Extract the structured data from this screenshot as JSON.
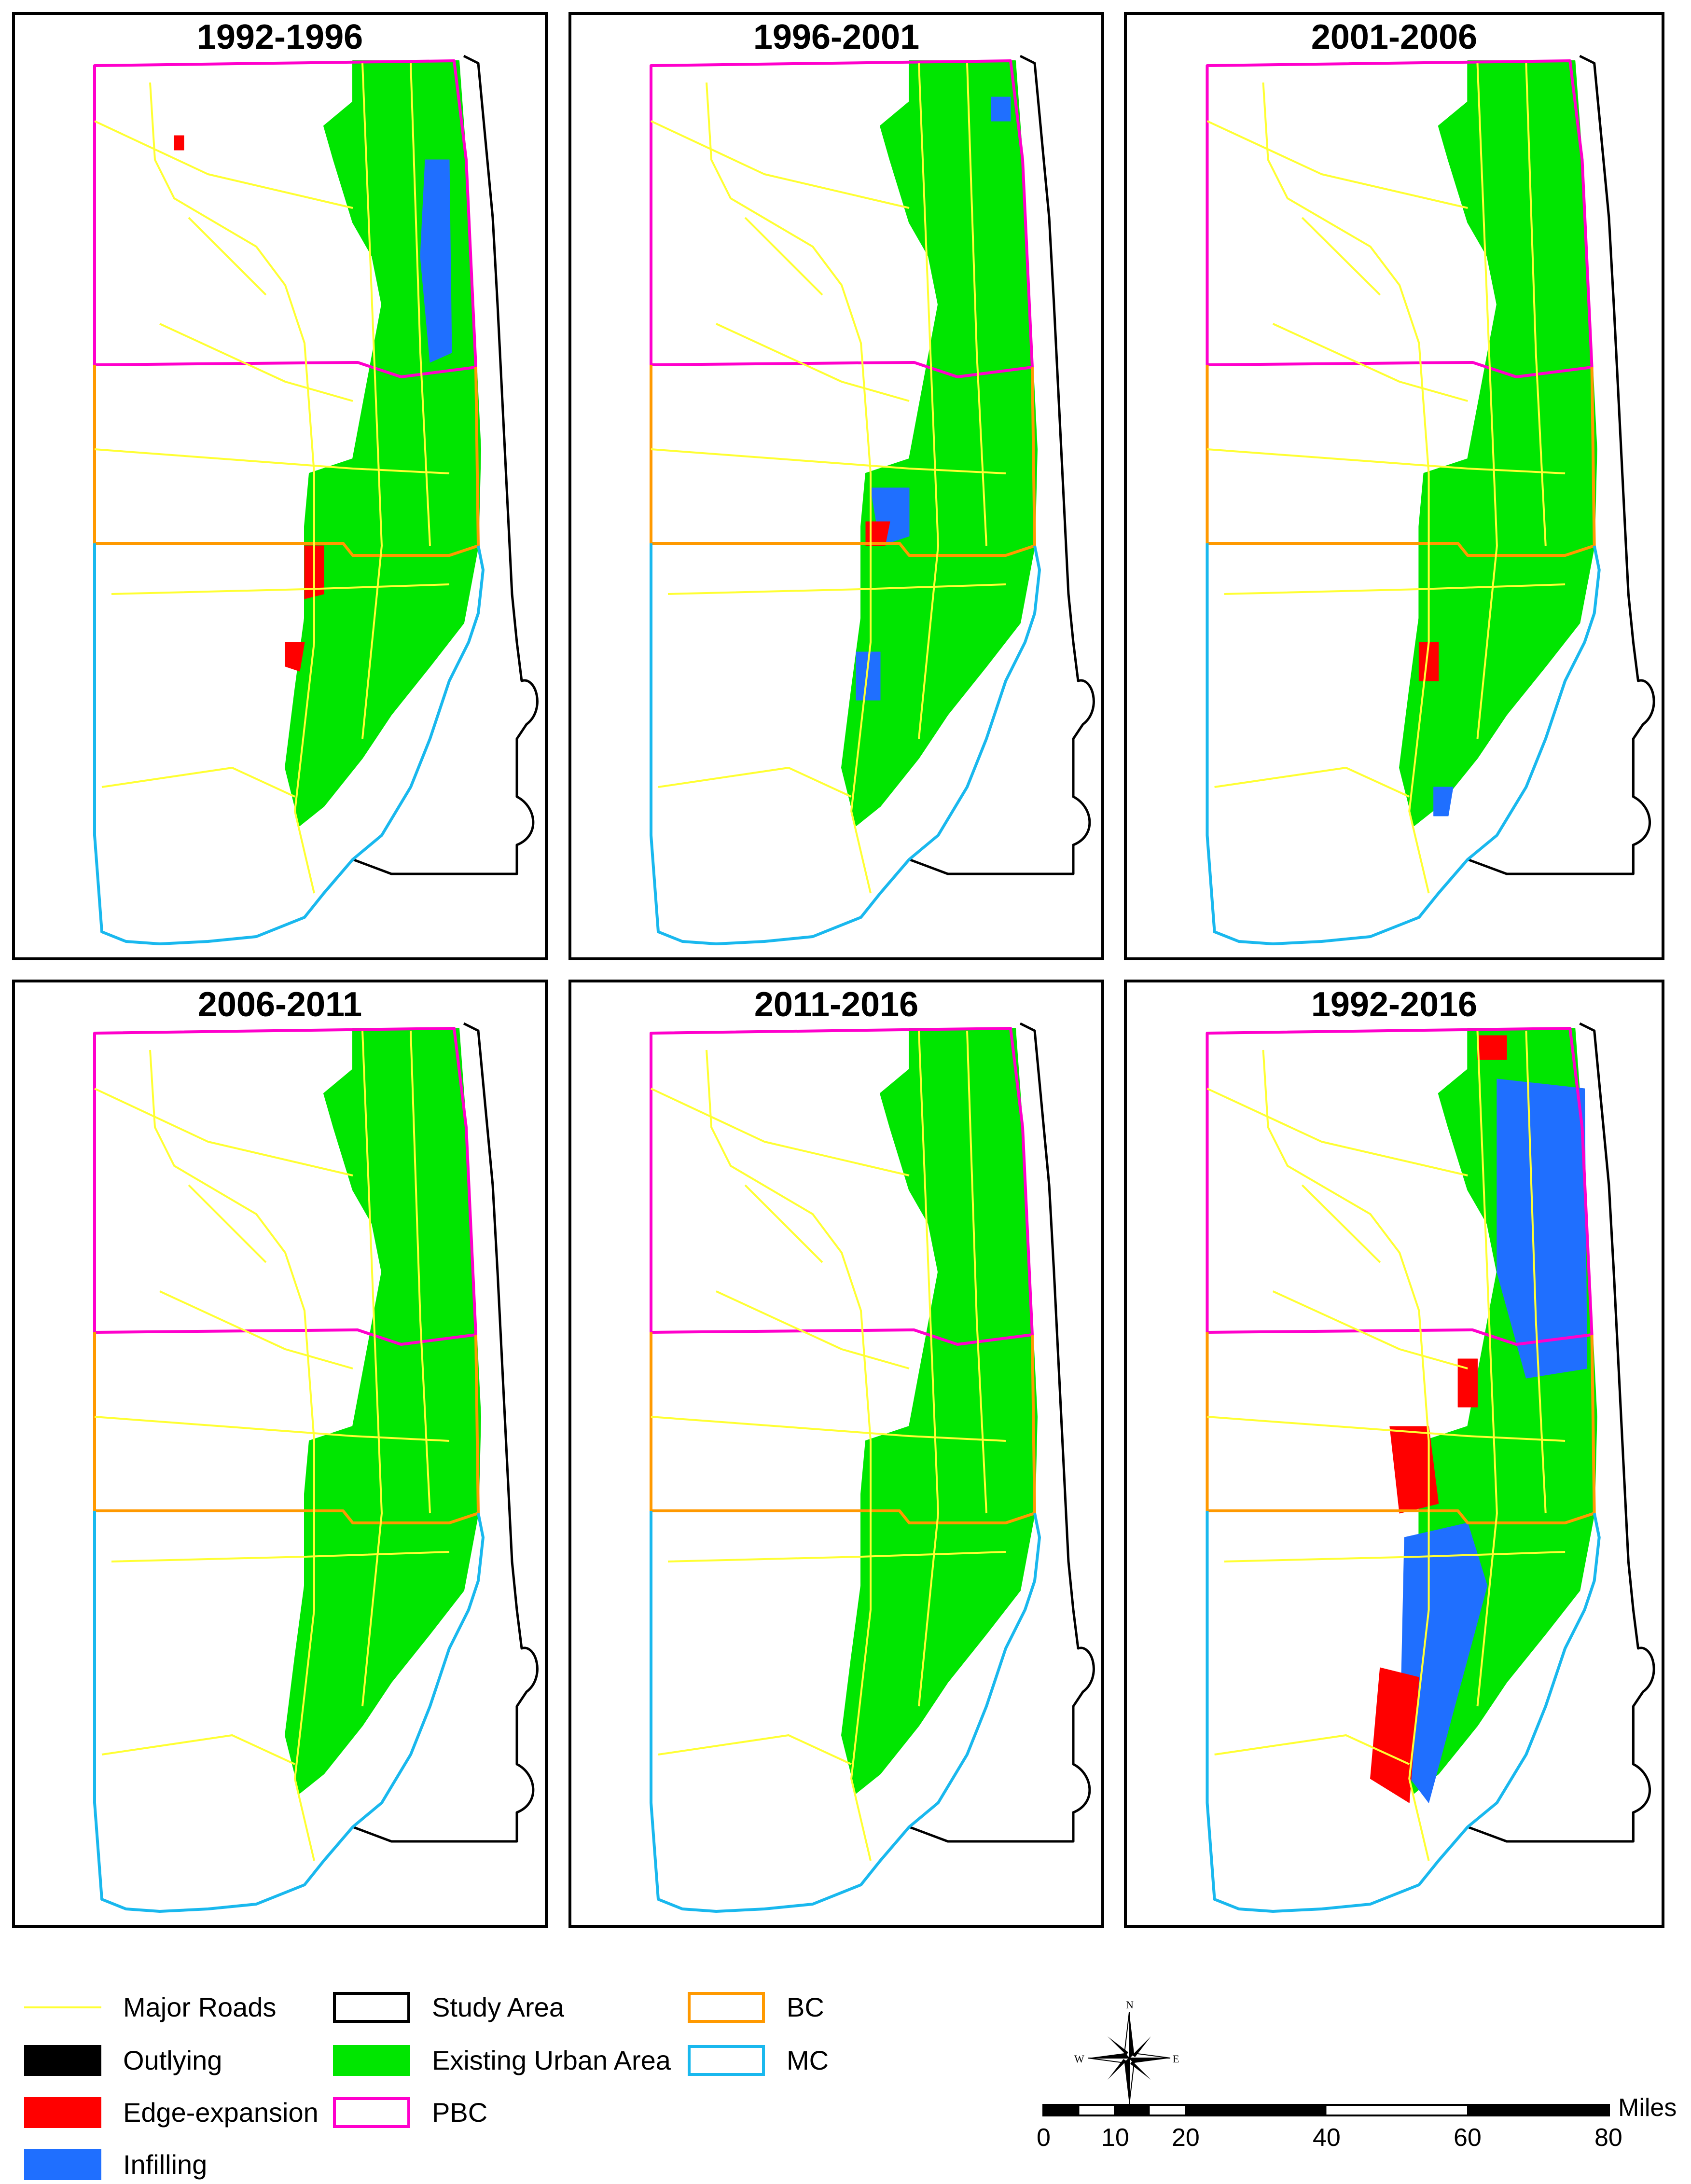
{
  "panels": [
    {
      "title": "1992-1996"
    },
    {
      "title": "1996-2001"
    },
    {
      "title": "2001-2006"
    },
    {
      "title": "2006-2011"
    },
    {
      "title": "2011-2016"
    },
    {
      "title": "1992-2016"
    }
  ],
  "legend": {
    "major_roads": {
      "label": "Major Roads",
      "color": "#ffff33"
    },
    "outlying": {
      "label": "Outlying",
      "color": "#000000"
    },
    "edge_expansion": {
      "label": "Edge-expansion",
      "color": "#ff0000"
    },
    "infilling": {
      "label": "Infilling",
      "color": "#1f6fff"
    },
    "study_area": {
      "label": "Study Area",
      "color": "#000000"
    },
    "existing_urban": {
      "label": "Existing Urban Area",
      "color": "#00e600"
    },
    "pbc": {
      "label": "PBC",
      "color": "#ff00cc"
    },
    "bc": {
      "label": "BC",
      "color": "#ff9900"
    },
    "mc": {
      "label": "MC",
      "color": "#19b8ee"
    }
  },
  "north_arrow": {
    "n": "N",
    "s": "S",
    "e": "E",
    "w": "W"
  },
  "scale": {
    "unit": "Miles",
    "ticks": [
      "0",
      "10",
      "20",
      "40",
      "60",
      "80"
    ]
  }
}
